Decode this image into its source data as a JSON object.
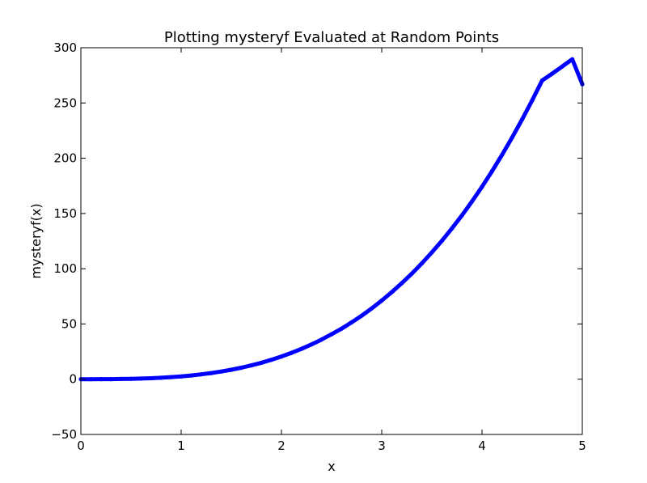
{
  "chart_data": {
    "type": "scatter",
    "title": "Plotting mysteryf Evaluated at Random Points",
    "xlabel": "x",
    "ylabel": "mysteryf(x)",
    "xlim": [
      0,
      5
    ],
    "ylim": [
      -50,
      300
    ],
    "xticks": [
      0,
      1,
      2,
      3,
      4,
      5
    ],
    "xtick_labels": [
      "0",
      "1",
      "2",
      "3",
      "4",
      "5"
    ],
    "yticks": [
      -50,
      0,
      50,
      100,
      150,
      200,
      250,
      300
    ],
    "ytick_labels": [
      "−50",
      "0",
      "50",
      "100",
      "150",
      "200",
      "250",
      "300"
    ],
    "grid": false,
    "series": [
      {
        "color": "#0000ff",
        "marker": "dot",
        "x": [
          0.0,
          0.1,
          0.2,
          0.3,
          0.4,
          0.5,
          0.6,
          0.7,
          0.8,
          0.9,
          1.0,
          1.1,
          1.2,
          1.3,
          1.4,
          1.5,
          1.6,
          1.7,
          1.8,
          1.9,
          2.0,
          2.1,
          2.2,
          2.3,
          2.4,
          2.5,
          2.6,
          2.7,
          2.8,
          2.9,
          3.0,
          3.1,
          3.2,
          3.3,
          3.4,
          3.5,
          3.6,
          3.7,
          3.8,
          3.9,
          4.0,
          4.1,
          4.2,
          4.3,
          4.4,
          4.5,
          4.6,
          4.7,
          4.8,
          4.9,
          5.0
        ],
        "y": [
          0.0,
          0.0,
          0.1,
          0.1,
          0.2,
          0.4,
          0.6,
          0.9,
          1.3,
          1.9,
          2.5,
          3.4,
          4.4,
          5.6,
          7.0,
          8.6,
          10.4,
          12.5,
          14.9,
          17.6,
          20.6,
          23.9,
          27.5,
          31.5,
          35.9,
          40.7,
          45.8,
          51.5,
          57.5,
          64.1,
          71.2,
          78.8,
          86.9,
          95.6,
          104.9,
          114.8,
          125.3,
          136.5,
          148.3,
          160.9,
          174.2,
          188.3,
          203.1,
          218.7,
          235.1,
          252.3,
          270.4,
          276.6,
          283.0,
          289.6,
          267.0
        ]
      }
    ]
  }
}
